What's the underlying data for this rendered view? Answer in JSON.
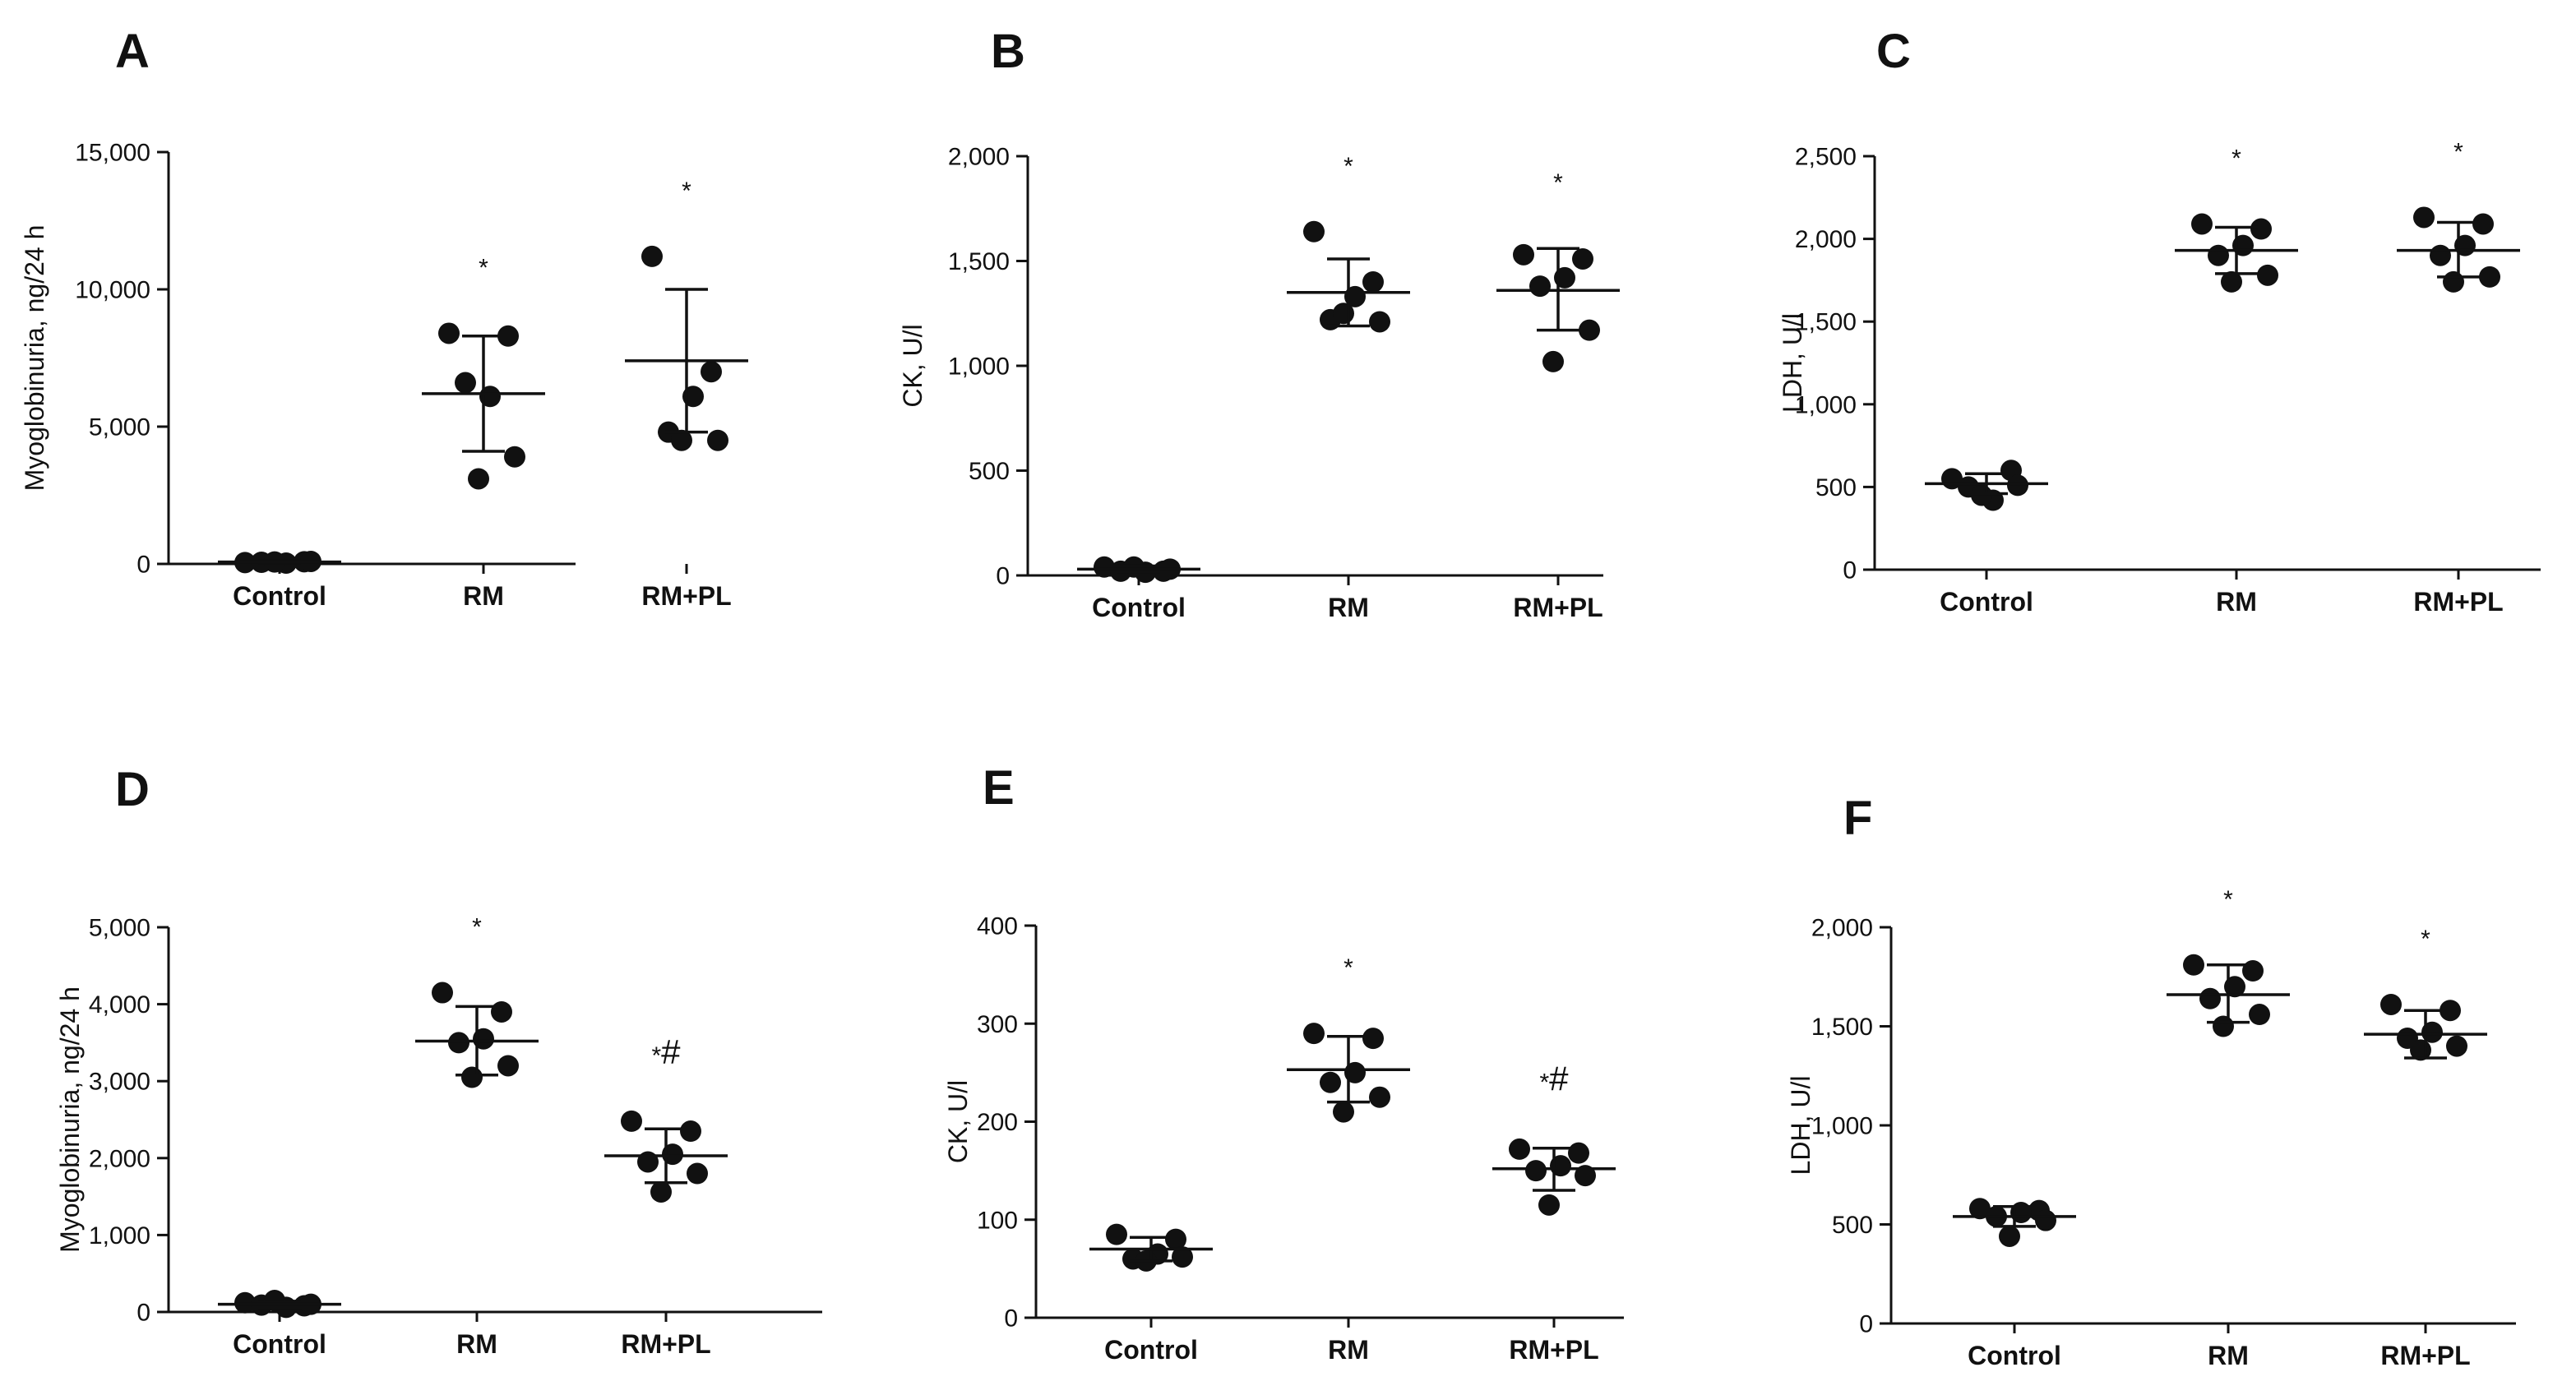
{
  "chart_data": [
    {
      "panel": "A",
      "type": "scatter",
      "ylabel": "Myoglobinuria, ng/24 h",
      "categories": [
        "Control",
        "RM",
        "RM+PL"
      ],
      "ylim": [
        0,
        15000
      ],
      "yticks": [
        0,
        5000,
        10000,
        15000
      ],
      "ytick_labels": [
        "0",
        "5,000",
        "10,000",
        "15,000"
      ],
      "groups": [
        {
          "name": "Control",
          "points": [
            50,
            80,
            30,
            60,
            90,
            70
          ],
          "mean": 70,
          "sd_low": 40,
          "sd_high": 100,
          "sig": ""
        },
        {
          "name": "RM",
          "points": [
            8400,
            8300,
            6100,
            6600,
            3900,
            3100
          ],
          "mean": 6200,
          "sd_low": 4100,
          "sd_high": 8300,
          "sig": "*"
        },
        {
          "name": "RM+PL",
          "points": [
            11200,
            7000,
            6100,
            4800,
            4500,
            4500
          ],
          "mean": 7400,
          "sd_low": 4800,
          "sd_high": 10000,
          "sig": "*"
        }
      ]
    },
    {
      "panel": "B",
      "type": "scatter",
      "ylabel": "CK, U/l",
      "categories": [
        "Control",
        "RM",
        "RM+PL"
      ],
      "ylim": [
        0,
        2000
      ],
      "yticks": [
        0,
        500,
        1000,
        1500,
        2000
      ],
      "ytick_labels": [
        "0",
        "500",
        "1,000",
        "1,500",
        "2,000"
      ],
      "groups": [
        {
          "name": "Control",
          "points": [
            40,
            20,
            15,
            20,
            30,
            40
          ],
          "mean": 30,
          "sd_low": 15,
          "sd_high": 45,
          "sig": ""
        },
        {
          "name": "RM",
          "points": [
            1640,
            1400,
            1330,
            1220,
            1210,
            1250
          ],
          "mean": 1350,
          "sd_low": 1190,
          "sd_high": 1510,
          "sig": "*"
        },
        {
          "name": "RM+PL",
          "points": [
            1530,
            1510,
            1420,
            1380,
            1170,
            1020
          ],
          "mean": 1360,
          "sd_low": 1170,
          "sd_high": 1560,
          "sig": "*"
        }
      ]
    },
    {
      "panel": "C",
      "type": "scatter",
      "ylabel": "LDH, U/l",
      "categories": [
        "Control",
        "RM",
        "RM+PL"
      ],
      "ylim": [
        0,
        2500
      ],
      "yticks": [
        0,
        500,
        1000,
        1500,
        2000,
        2500
      ],
      "ytick_labels": [
        "0",
        "500",
        "1,000",
        "1,500",
        "2,000",
        "2,500"
      ],
      "groups": [
        {
          "name": "Control",
          "points": [
            550,
            600,
            420,
            500,
            510,
            450
          ],
          "mean": 520,
          "sd_low": 460,
          "sd_high": 580,
          "sig": ""
        },
        {
          "name": "RM",
          "points": [
            2090,
            2060,
            1960,
            1900,
            1780,
            1740
          ],
          "mean": 1930,
          "sd_low": 1790,
          "sd_high": 2070,
          "sig": "*"
        },
        {
          "name": "RM+PL",
          "points": [
            2130,
            2090,
            1960,
            1900,
            1770,
            1740
          ],
          "mean": 1930,
          "sd_low": 1770,
          "sd_high": 2100,
          "sig": "*"
        }
      ]
    },
    {
      "panel": "D",
      "type": "scatter",
      "ylabel": "Myoglobinuria, ng/24 h",
      "categories": [
        "Control",
        "RM",
        "RM+PL"
      ],
      "ylim": [
        0,
        5000
      ],
      "yticks": [
        0,
        1000,
        2000,
        3000,
        4000,
        5000
      ],
      "ytick_labels": [
        "0",
        "1,000",
        "2,000",
        "3,000",
        "4,000",
        "5,000"
      ],
      "groups": [
        {
          "name": "Control",
          "points": [
            120,
            80,
            60,
            90,
            100,
            150
          ],
          "mean": 100,
          "sd_low": 60,
          "sd_high": 140,
          "sig": ""
        },
        {
          "name": "RM",
          "points": [
            4150,
            3900,
            3550,
            3500,
            3200,
            3050
          ],
          "mean": 3520,
          "sd_low": 3080,
          "sd_high": 3970,
          "sig": "*"
        },
        {
          "name": "RM+PL",
          "points": [
            2480,
            2350,
            2050,
            1950,
            1800,
            1560
          ],
          "mean": 2030,
          "sd_low": 1680,
          "sd_high": 2380,
          "sig": "*#"
        }
      ]
    },
    {
      "panel": "E",
      "type": "scatter",
      "ylabel": "CK, U/l",
      "categories": [
        "Control",
        "RM",
        "RM+PL"
      ],
      "ylim": [
        0,
        400
      ],
      "yticks": [
        0,
        100,
        200,
        300,
        400
      ],
      "ytick_labels": [
        "0",
        "100",
        "200",
        "300",
        "400"
      ],
      "groups": [
        {
          "name": "Control",
          "points": [
            85,
            80,
            65,
            60,
            62,
            58
          ],
          "mean": 70,
          "sd_low": 58,
          "sd_high": 82,
          "sig": ""
        },
        {
          "name": "RM",
          "points": [
            290,
            285,
            250,
            240,
            225,
            210
          ],
          "mean": 253,
          "sd_low": 220,
          "sd_high": 287,
          "sig": "*"
        },
        {
          "name": "RM+PL",
          "points": [
            172,
            168,
            155,
            150,
            145,
            115
          ],
          "mean": 152,
          "sd_low": 130,
          "sd_high": 173,
          "sig": "*#"
        }
      ]
    },
    {
      "panel": "F",
      "type": "scatter",
      "ylabel": "LDH, U/l",
      "categories": [
        "Control",
        "RM",
        "RM+PL"
      ],
      "ylim": [
        0,
        2000
      ],
      "yticks": [
        0,
        500,
        1000,
        1500,
        2000
      ],
      "ytick_labels": [
        "0",
        "500",
        "1,000",
        "1,500",
        "2,000"
      ],
      "groups": [
        {
          "name": "Control",
          "points": [
            580,
            570,
            560,
            540,
            520,
            440
          ],
          "mean": 540,
          "sd_low": 490,
          "sd_high": 590,
          "sig": ""
        },
        {
          "name": "RM",
          "points": [
            1810,
            1780,
            1700,
            1640,
            1560,
            1500
          ],
          "mean": 1660,
          "sd_low": 1520,
          "sd_high": 1810,
          "sig": "*"
        },
        {
          "name": "RM+PL",
          "points": [
            1610,
            1580,
            1470,
            1440,
            1400,
            1380
          ],
          "mean": 1460,
          "sd_low": 1340,
          "sd_high": 1580,
          "sig": "*"
        }
      ]
    }
  ]
}
